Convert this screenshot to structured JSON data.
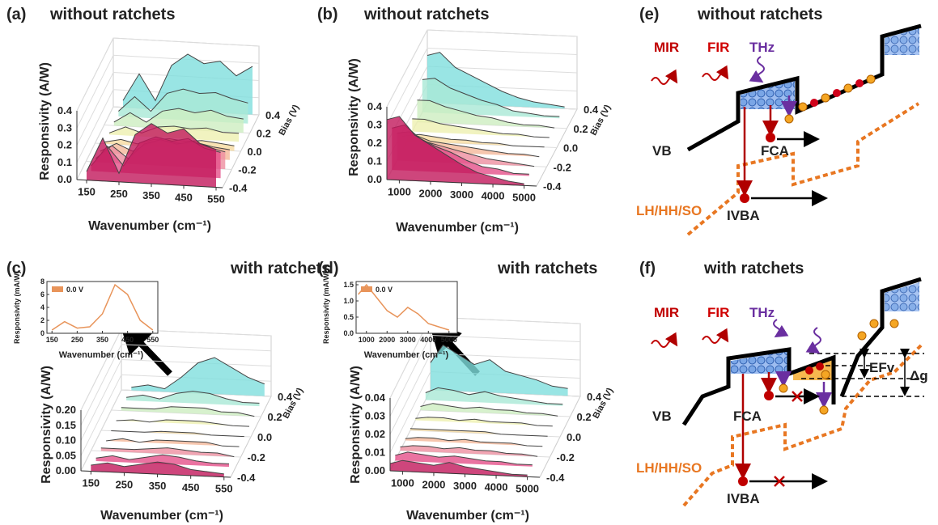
{
  "chart_data": [
    {
      "type": "waterfall3d",
      "panel_label": "(a)",
      "title": "without ratchets",
      "xlabel": "Wavenumber (cm⁻¹)",
      "ylabel": "Responsivity (A/W)",
      "zlabel": "Bias (V)",
      "x": [
        150,
        200,
        250,
        300,
        350,
        400,
        450,
        500,
        550
      ],
      "xlim": [
        120,
        570
      ],
      "xticks": [
        150,
        250,
        350,
        450,
        550
      ],
      "ylim": [
        0,
        0.4
      ],
      "yticks": [
        {
          "value": 0,
          "label": "0.0"
        },
        0.1,
        0.2,
        0.3,
        0.4
      ],
      "zlim": [
        -0.4,
        0.4
      ],
      "zticks": [
        -0.4,
        -0.2,
        {
          "value": 0,
          "label": "0.0"
        },
        0.2,
        0.4
      ],
      "series": [
        {
          "color": "#c2185b",
          "values": [
            0.05,
            0.25,
            0.05,
            0.28,
            0.35,
            0.3,
            0.33,
            0.25,
            0.22
          ]
        },
        {
          "color": "#e5508a",
          "values": [
            0.03,
            0.15,
            0.04,
            0.18,
            0.22,
            0.2,
            0.22,
            0.17,
            0.15
          ]
        },
        {
          "color": "#ee8fa0",
          "values": [
            0.02,
            0.1,
            0.03,
            0.12,
            0.15,
            0.13,
            0.15,
            0.12,
            0.1
          ]
        },
        {
          "color": "#f4b89a",
          "values": [
            0.01,
            0.06,
            0.02,
            0.07,
            0.09,
            0.08,
            0.09,
            0.07,
            0.06
          ]
        },
        {
          "color": "#f6dba0",
          "values": [
            0.01,
            0.03,
            0.01,
            0.04,
            0.05,
            0.04,
            0.05,
            0.04,
            0.03
          ]
        },
        {
          "color": "#eef0b0",
          "values": [
            0.01,
            0.05,
            0.02,
            0.06,
            0.07,
            0.06,
            0.07,
            0.05,
            0.05
          ]
        },
        {
          "color": "#cdeec0",
          "values": [
            0.02,
            0.08,
            0.03,
            0.1,
            0.12,
            0.1,
            0.12,
            0.09,
            0.08
          ]
        },
        {
          "color": "#a9e8d6",
          "values": [
            0.03,
            0.12,
            0.04,
            0.15,
            0.18,
            0.16,
            0.17,
            0.14,
            0.12
          ]
        },
        {
          "color": "#7fdedd",
          "values": [
            0.04,
            0.2,
            0.05,
            0.26,
            0.33,
            0.28,
            0.3,
            0.22,
            0.28
          ]
        }
      ]
    },
    {
      "type": "waterfall3d",
      "panel_label": "(b)",
      "title": "without ratchets",
      "xlabel": "Wavenumber (cm⁻¹)",
      "ylabel": "Responsivity (A/W)",
      "zlabel": "Bias (V)",
      "x": [
        600,
        1000,
        1500,
        2000,
        2500,
        3000,
        3500,
        4000,
        4500,
        5000
      ],
      "xlim": [
        600,
        5400
      ],
      "xticks": [
        1000,
        2000,
        3000,
        4000,
        5000
      ],
      "ylim": [
        0,
        0.4
      ],
      "yticks": [
        {
          "value": 0,
          "label": "0.0"
        },
        0.1,
        0.2,
        0.3,
        0.4
      ],
      "zlim": [
        -0.4,
        0.4
      ],
      "zticks": [
        -0.4,
        -0.2,
        {
          "value": 0,
          "label": "0.0"
        },
        0.2,
        0.4
      ],
      "series": [
        {
          "color": "#c2185b",
          "values": [
            0.33,
            0.35,
            0.25,
            0.2,
            0.15,
            0.1,
            0.06,
            0.04,
            0.02,
            0.01
          ]
        },
        {
          "color": "#e5508a",
          "values": [
            0.23,
            0.25,
            0.18,
            0.14,
            0.11,
            0.07,
            0.04,
            0.03,
            0.01,
            0.01
          ]
        },
        {
          "color": "#ee8fa0",
          "values": [
            0.15,
            0.16,
            0.11,
            0.09,
            0.07,
            0.05,
            0.03,
            0.02,
            0.01,
            0
          ]
        },
        {
          "color": "#f4b89a",
          "values": [
            0.08,
            0.09,
            0.06,
            0.05,
            0.04,
            0.03,
            0.02,
            0.01,
            0.01,
            0
          ]
        },
        {
          "color": "#f6dba0",
          "values": [
            0.03,
            0.04,
            0.03,
            0.02,
            0.02,
            0.01,
            0.01,
            0,
            0,
            0
          ]
        },
        {
          "color": "#eef0b0",
          "values": [
            0.07,
            0.07,
            0.05,
            0.04,
            0.03,
            0.02,
            0.01,
            0.01,
            0,
            0
          ]
        },
        {
          "color": "#cdeec0",
          "values": [
            0.12,
            0.12,
            0.09,
            0.07,
            0.05,
            0.04,
            0.02,
            0.01,
            0.01,
            0
          ]
        },
        {
          "color": "#a9e8d6",
          "values": [
            0.18,
            0.19,
            0.14,
            0.11,
            0.08,
            0.06,
            0.03,
            0.02,
            0.01,
            0.01
          ]
        },
        {
          "color": "#7fdedd",
          "values": [
            0.26,
            0.28,
            0.2,
            0.16,
            0.12,
            0.08,
            0.05,
            0.03,
            0.02,
            0.01
          ]
        }
      ]
    },
    {
      "type": "waterfall3d",
      "panel_label": "(c)",
      "title": "with ratchets",
      "xlabel": "Wavenumber (cm⁻¹)",
      "ylabel": "Responsivity (A/W)",
      "zlabel": "Bias (V)",
      "x": [
        150,
        200,
        250,
        300,
        350,
        400,
        450,
        500,
        550
      ],
      "xlim": [
        120,
        570
      ],
      "xticks": [
        150,
        250,
        350,
        450,
        550
      ],
      "ylim": [
        0,
        0.2
      ],
      "yticks": [
        {
          "value": 0,
          "label": "0.00"
        },
        0.05,
        {
          "value": 0.1,
          "label": "0.10"
        },
        0.15,
        {
          "value": 0.2,
          "label": "0.20"
        }
      ],
      "zlim": [
        -0.4,
        0.4
      ],
      "zticks": [
        -0.4,
        -0.2,
        {
          "value": 0,
          "label": "0.0"
        },
        0.2,
        0.4
      ],
      "series": [
        {
          "color": "#c2185b",
          "values": [
            0.02,
            0.03,
            0.02,
            0.03,
            0.04,
            0.035,
            0.02,
            0.015,
            0.01
          ]
        },
        {
          "color": "#e5508a",
          "values": [
            0.01,
            0.02,
            0.01,
            0.02,
            0.03,
            0.025,
            0.015,
            0.01,
            0.01
          ]
        },
        {
          "color": "#ee8fa0",
          "values": [
            0.01,
            0.01,
            0.01,
            0.015,
            0.02,
            0.015,
            0.01,
            0.01,
            0
          ]
        },
        {
          "color": "#f4b89a",
          "values": [
            0,
            0.01,
            0,
            0.01,
            0.01,
            0.01,
            0.01,
            0,
            0
          ]
        },
        {
          "color": "#f6dba0",
          "values": [
            0,
            0,
            0,
            0.005,
            0.005,
            0.005,
            0,
            0,
            0
          ]
        },
        {
          "color": "#eef0b0",
          "values": [
            0,
            0.005,
            0,
            0.01,
            0.01,
            0.01,
            0.005,
            0,
            0
          ]
        },
        {
          "color": "#cdeec0",
          "values": [
            0.01,
            0.01,
            0.01,
            0.02,
            0.02,
            0.02,
            0.01,
            0.01,
            0
          ]
        },
        {
          "color": "#a9e8d6",
          "values": [
            0.01,
            0.02,
            0.01,
            0.03,
            0.04,
            0.035,
            0.02,
            0.01,
            0.01
          ]
        },
        {
          "color": "#7fdedd",
          "values": [
            0.01,
            0.02,
            0.01,
            0.05,
            0.1,
            0.12,
            0.09,
            0.06,
            0.04
          ]
        }
      ]
    },
    {
      "type": "waterfall3d",
      "panel_label": "(d)",
      "title": "with ratchets",
      "xlabel": "Wavenumber (cm⁻¹)",
      "ylabel": "Responsivity (A/W)",
      "zlabel": "Bias (V)",
      "x": [
        600,
        1000,
        1500,
        2000,
        2500,
        3000,
        3500,
        4000,
        4500,
        5000
      ],
      "xlim": [
        600,
        5400
      ],
      "xticks": [
        1000,
        2000,
        3000,
        4000,
        5000
      ],
      "ylim": [
        0,
        0.04
      ],
      "yticks": [
        {
          "value": 0,
          "label": "0.00"
        },
        0.01,
        0.02,
        0.03,
        0.04
      ],
      "zlim": [
        -0.4,
        0.4
      ],
      "zticks": [
        -0.4,
        -0.2,
        {
          "value": 0,
          "label": "0.0"
        },
        0.2,
        0.4
      ],
      "series": [
        {
          "color": "#c2185b",
          "values": [
            0.004,
            0.006,
            0.005,
            0.004,
            0.006,
            0.004,
            0.003,
            0.002,
            0.001,
            0.001
          ]
        },
        {
          "color": "#e5508a",
          "values": [
            0.003,
            0.005,
            0.004,
            0.003,
            0.004,
            0.003,
            0.002,
            0.002,
            0.001,
            0.001
          ]
        },
        {
          "color": "#ee8fa0",
          "values": [
            0.002,
            0.003,
            0.003,
            0.002,
            0.003,
            0.002,
            0.002,
            0.001,
            0.001,
            0
          ]
        },
        {
          "color": "#f4b89a",
          "values": [
            0.001,
            0.002,
            0.002,
            0.001,
            0.002,
            0.001,
            0.001,
            0.001,
            0,
            0
          ]
        },
        {
          "color": "#f6dba0",
          "values": [
            0.001,
            0.001,
            0.001,
            0.001,
            0.001,
            0.001,
            0,
            0,
            0,
            0
          ]
        },
        {
          "color": "#eef0b0",
          "values": [
            0.001,
            0.002,
            0.002,
            0.001,
            0.002,
            0.001,
            0.001,
            0.001,
            0,
            0
          ]
        },
        {
          "color": "#cdeec0",
          "values": [
            0.002,
            0.004,
            0.003,
            0.002,
            0.003,
            0.002,
            0.002,
            0.001,
            0.001,
            0
          ]
        },
        {
          "color": "#a9e8d6",
          "values": [
            0.004,
            0.007,
            0.006,
            0.004,
            0.006,
            0.004,
            0.003,
            0.002,
            0.001,
            0.001
          ]
        },
        {
          "color": "#7fdedd",
          "values": [
            0.015,
            0.025,
            0.02,
            0.015,
            0.018,
            0.012,
            0.01,
            0.008,
            0.005,
            0.004
          ]
        }
      ]
    },
    {
      "type": "line",
      "xlabel": "Wavenumber (cm⁻¹)",
      "ylabel": "Responsivity (mA/W)",
      "x": [
        150,
        200,
        250,
        300,
        350,
        400,
        450,
        500,
        550
      ],
      "xlim": [
        130,
        570
      ],
      "xticks": [
        150,
        250,
        350,
        450,
        550
      ],
      "ylim": [
        0,
        8
      ],
      "yticks": [
        0,
        2,
        4,
        6,
        8
      ],
      "series": [
        {
          "name": "0.0 V",
          "color": "#e8945a",
          "values": [
            0.5,
            1.8,
            0.8,
            1,
            3,
            7.5,
            6,
            2,
            0.5
          ]
        }
      ]
    },
    {
      "type": "line",
      "xlabel": "Wavenumber (cm⁻¹)",
      "ylabel": "Responsivity (mA/W)",
      "x": [
        600,
        1000,
        1500,
        2000,
        2500,
        3000,
        3500,
        4000,
        4500,
        5000
      ],
      "xlim": [
        500,
        5400
      ],
      "xticks": [
        1000,
        2000,
        3000,
        4000,
        5000
      ],
      "ylim": [
        0,
        1.6
      ],
      "yticks": [
        {
          "value": 0,
          "label": "0.0"
        },
        0.5,
        {
          "value": 1,
          "label": "1.0"
        },
        1.5
      ],
      "series": [
        {
          "name": "0.0 V",
          "color": "#e8945a",
          "values": [
            1.2,
            1.5,
            1.1,
            0.7,
            0.5,
            0.8,
            0.6,
            0.3,
            0.2,
            0.1
          ]
        }
      ]
    }
  ],
  "diagrams": [
    {
      "panel_label": "(e)",
      "title": "without ratchets",
      "mir": "MIR",
      "fir": "FIR",
      "thz": "THz",
      "vb": "VB",
      "fca": "FCA",
      "bands": "LH/HH/SO",
      "ivba": "IVBA"
    },
    {
      "panel_label": "(f)",
      "title": "with ratchets",
      "mir": "MIR",
      "fir": "FIR",
      "thz": "THz",
      "vb": "VB",
      "fca": "FCA",
      "bands": "LH/HH/SO",
      "ivba": "IVBA",
      "efv": "EFv",
      "dg": "Δg"
    }
  ]
}
